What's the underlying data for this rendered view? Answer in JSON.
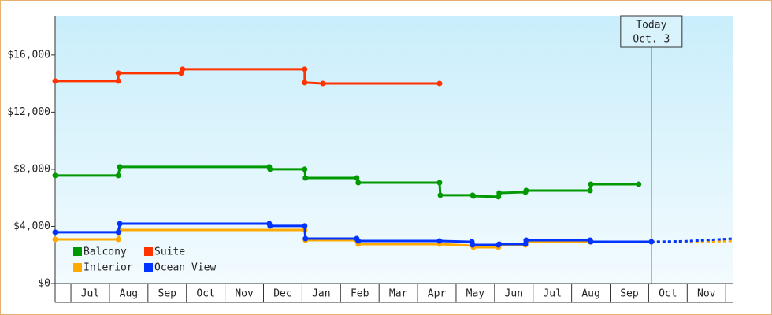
{
  "chart_data": {
    "type": "step-line",
    "xlim": [
      -0.41,
      17.18
    ],
    "xticks": [
      {
        "value": 0.5,
        "label": "Jul"
      },
      {
        "value": 1.5,
        "label": "Aug"
      },
      {
        "value": 2.5,
        "label": "Sep"
      },
      {
        "value": 3.5,
        "label": "Oct"
      },
      {
        "value": 4.5,
        "label": "Nov"
      },
      {
        "value": 5.5,
        "label": "Dec"
      },
      {
        "value": 6.5,
        "label": "Jan"
      },
      {
        "value": 7.5,
        "label": "Feb"
      },
      {
        "value": 8.5,
        "label": "Mar"
      },
      {
        "value": 9.5,
        "label": "Apr"
      },
      {
        "value": 10.5,
        "label": "May"
      },
      {
        "value": 11.5,
        "label": "Jun"
      },
      {
        "value": 12.5,
        "label": "Jul"
      },
      {
        "value": 13.5,
        "label": "Aug"
      },
      {
        "value": 14.5,
        "label": "Sep"
      },
      {
        "value": 15.5,
        "label": "Oct"
      },
      {
        "value": 16.5,
        "label": "Nov"
      }
    ],
    "ylim": [
      0,
      18750
    ],
    "yticks": [
      {
        "value": 0,
        "label": "$0"
      },
      {
        "value": 4000,
        "label": "$4,000"
      },
      {
        "value": 8000,
        "label": "$8,000"
      },
      {
        "value": 12000,
        "label": "$12,000"
      },
      {
        "value": 16000,
        "label": "$16,000"
      }
    ],
    "today": {
      "x": 15.07,
      "line1": "Today",
      "line2": "Oct. 3"
    },
    "series": [
      {
        "name": "Balcony",
        "color": "#009900",
        "x": [
          -0.41,
          1.23,
          1.27,
          5.15,
          5.17,
          6.07,
          6.09,
          7.42,
          7.46,
          9.57,
          9.59,
          10.43,
          10.45,
          11.1,
          11.12,
          11.8,
          11.82,
          13.48,
          13.5,
          14.74
        ],
        "values": [
          7560,
          7560,
          8170,
          8170,
          8000,
          8000,
          7390,
          7390,
          7060,
          7060,
          6180,
          6180,
          6120,
          6070,
          6340,
          6400,
          6510,
          6510,
          6950,
          6950
        ]
      },
      {
        "name": "Suite",
        "color": "#ff3300",
        "x": [
          -0.41,
          1.23,
          1.23,
          2.86,
          2.9,
          6.07,
          6.07,
          6.54,
          9.57
        ],
        "values": [
          14180,
          14180,
          14730,
          14730,
          15010,
          15010,
          14070,
          14010,
          14010
        ]
      },
      {
        "name": "Interior",
        "color": "#ffaa00",
        "x": [
          -0.41,
          1.23,
          1.27,
          6.07,
          6.09,
          7.42,
          7.46,
          9.57,
          10.43,
          10.45,
          11.1,
          11.12,
          11.8,
          11.82,
          13.48,
          15.07
        ],
        "values": [
          3090,
          3090,
          3750,
          3750,
          3030,
          3030,
          2760,
          2760,
          2650,
          2540,
          2540,
          2700,
          2700,
          2920,
          2920,
          2920
        ],
        "projection": {
          "x": [
            15.07,
            15.95,
            17.18
          ],
          "values": [
            2920,
            2900,
            2980
          ]
        }
      },
      {
        "name": "Ocean View",
        "color": "#0033ff",
        "x": [
          -0.41,
          1.23,
          1.27,
          5.15,
          5.17,
          6.07,
          6.09,
          7.42,
          7.46,
          9.57,
          10.41,
          10.43,
          11.1,
          11.12,
          11.8,
          11.82,
          13.48,
          13.5,
          15.07
        ],
        "values": [
          3590,
          3590,
          4190,
          4190,
          4030,
          4030,
          3140,
          3140,
          2980,
          2980,
          2920,
          2700,
          2700,
          2760,
          2760,
          3030,
          3030,
          2920,
          2920
        ],
        "projection": {
          "x": [
            15.07,
            15.95,
            17.18
          ],
          "values": [
            2920,
            2960,
            3140
          ]
        }
      }
    ]
  }
}
